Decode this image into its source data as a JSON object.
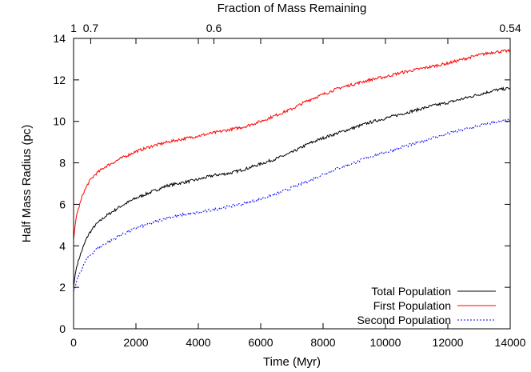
{
  "chart_data": {
    "type": "line",
    "title": "",
    "xlabel": "Time (Myr)",
    "ylabel": "Half Mass Radius (pc)",
    "top_xlabel": "Fraction of Mass Remaining",
    "xlim": [
      0,
      14000
    ],
    "ylim": [
      0,
      14
    ],
    "x_ticks": [
      0,
      2000,
      4000,
      6000,
      8000,
      10000,
      12000,
      14000
    ],
    "x_tick_labels": [
      "0",
      "2000",
      "4000",
      "6000",
      "8000",
      "10000",
      "12000",
      "14000"
    ],
    "y_ticks": [
      0,
      2,
      4,
      6,
      8,
      10,
      12,
      14
    ],
    "y_tick_labels": [
      "0",
      "2",
      "4",
      "6",
      "8",
      "10",
      "12",
      "14"
    ],
    "top_ticks": [
      {
        "x": 0,
        "label": "1"
      },
      {
        "x": 550,
        "label": "0.7"
      },
      {
        "x": 4500,
        "label": "0.6"
      },
      {
        "x": 14000,
        "label": "0.54"
      }
    ],
    "grid": false,
    "legend_position": "bottom-right",
    "series": [
      {
        "name": "Total Population",
        "color": "#000000",
        "dash": "solid",
        "x": [
          0,
          50,
          100,
          200,
          300,
          400,
          500,
          700,
          1000,
          1500,
          2000,
          2500,
          3000,
          3500,
          4000,
          4500,
          5000,
          5500,
          6000,
          6500,
          7000,
          7500,
          8000,
          8500,
          9000,
          9500,
          10000,
          10500,
          11000,
          11500,
          12000,
          12500,
          13000,
          13500,
          14000
        ],
        "values": [
          2.0,
          2.6,
          3.0,
          3.5,
          3.9,
          4.3,
          4.6,
          5.0,
          5.4,
          5.9,
          6.3,
          6.6,
          6.9,
          7.05,
          7.2,
          7.4,
          7.5,
          7.7,
          7.95,
          8.2,
          8.5,
          8.9,
          9.2,
          9.45,
          9.7,
          9.95,
          10.15,
          10.35,
          10.55,
          10.75,
          10.9,
          11.1,
          11.3,
          11.5,
          11.6
        ]
      },
      {
        "name": "First Population",
        "color": "#ff0000",
        "dash": "solid",
        "x": [
          0,
          50,
          100,
          200,
          300,
          400,
          500,
          700,
          1000,
          1500,
          2000,
          2500,
          3000,
          3500,
          4000,
          4500,
          5000,
          5500,
          6000,
          6500,
          7000,
          7500,
          8000,
          8500,
          9000,
          9500,
          10000,
          10500,
          11000,
          11500,
          12000,
          12500,
          13000,
          13500,
          14000
        ],
        "values": [
          4.3,
          5.0,
          5.5,
          6.0,
          6.5,
          6.8,
          7.1,
          7.45,
          7.8,
          8.2,
          8.55,
          8.8,
          9.0,
          9.15,
          9.3,
          9.45,
          9.6,
          9.75,
          10.0,
          10.3,
          10.6,
          11.0,
          11.3,
          11.6,
          11.8,
          12.0,
          12.15,
          12.35,
          12.5,
          12.65,
          12.8,
          13.0,
          13.2,
          13.35,
          13.4
        ]
      },
      {
        "name": "Second Population",
        "color": "#0000ff",
        "dash": "dotted",
        "x": [
          0,
          50,
          100,
          200,
          300,
          400,
          500,
          700,
          1000,
          1500,
          2000,
          2500,
          3000,
          3500,
          4000,
          4500,
          5000,
          5500,
          6000,
          6500,
          7000,
          7500,
          8000,
          8500,
          9000,
          9500,
          10000,
          10500,
          11000,
          11500,
          12000,
          12500,
          13000,
          13500,
          14000
        ],
        "values": [
          1.8,
          2.0,
          2.3,
          2.7,
          3.0,
          3.3,
          3.5,
          3.8,
          4.1,
          4.5,
          4.85,
          5.1,
          5.35,
          5.5,
          5.6,
          5.75,
          5.9,
          6.05,
          6.25,
          6.5,
          6.8,
          7.1,
          7.45,
          7.75,
          8.0,
          8.3,
          8.5,
          8.75,
          8.95,
          9.2,
          9.4,
          9.6,
          9.8,
          9.95,
          10.05
        ]
      }
    ]
  }
}
